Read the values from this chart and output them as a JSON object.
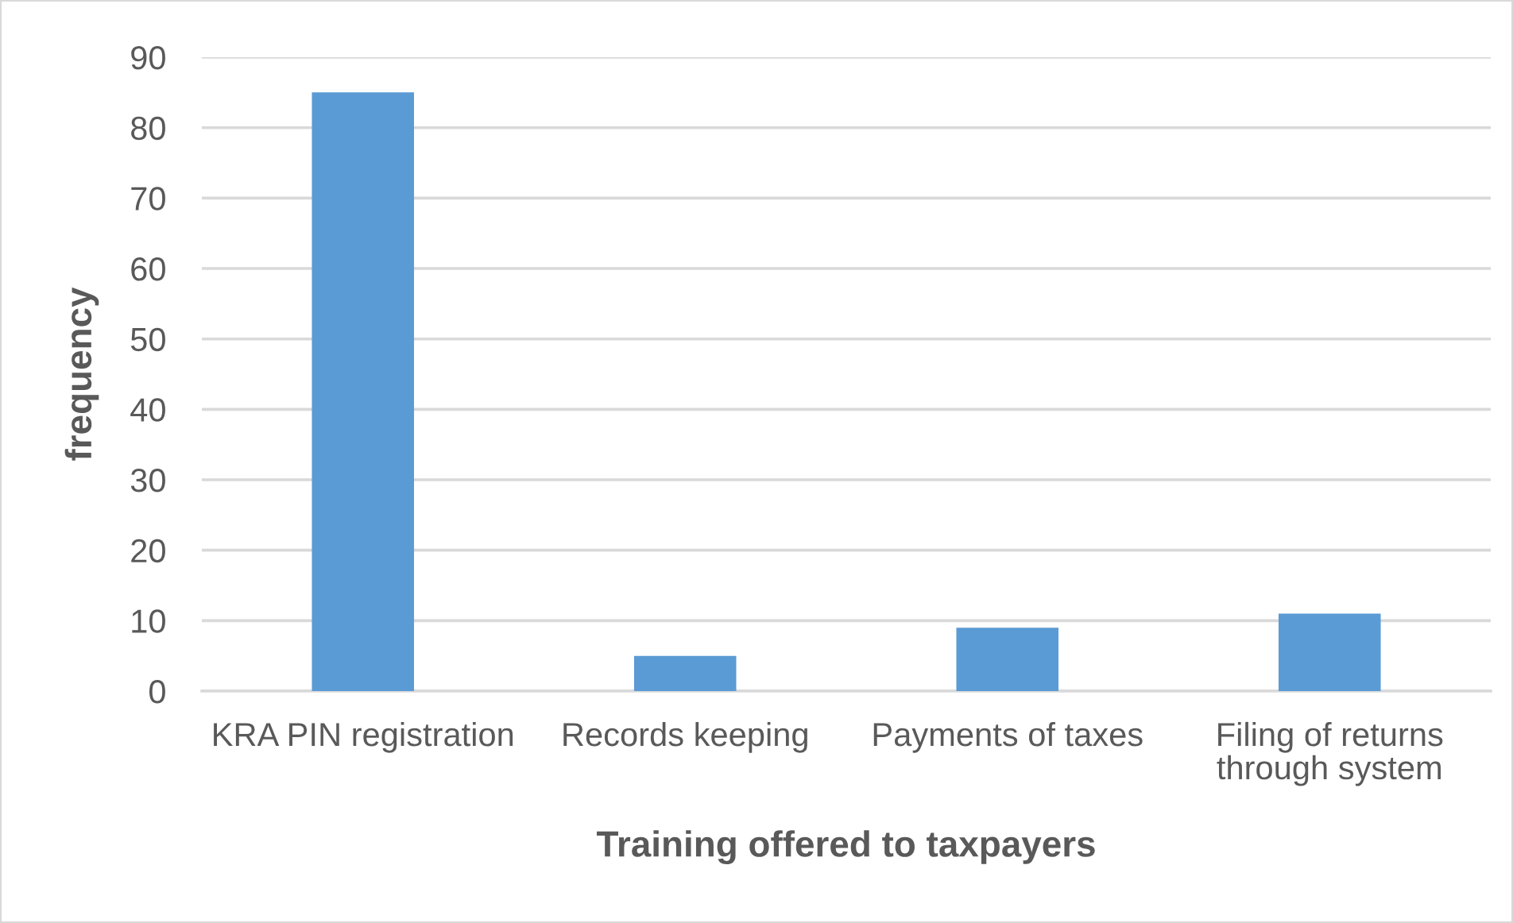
{
  "chart_data": {
    "type": "bar",
    "xlabel": "Training offered to taxpayers",
    "ylabel": "frequency",
    "categories": [
      "KRA PIN registration",
      "Records keeping",
      "Payments of taxes",
      "Filing of returns\nthrough system"
    ],
    "values": [
      85,
      5,
      9,
      11
    ],
    "color": "#5b9bd5",
    "ylim": [
      0,
      90
    ],
    "yticks": [
      0,
      10,
      20,
      30,
      40,
      50,
      60,
      70,
      80,
      90
    ],
    "grid": "y"
  }
}
